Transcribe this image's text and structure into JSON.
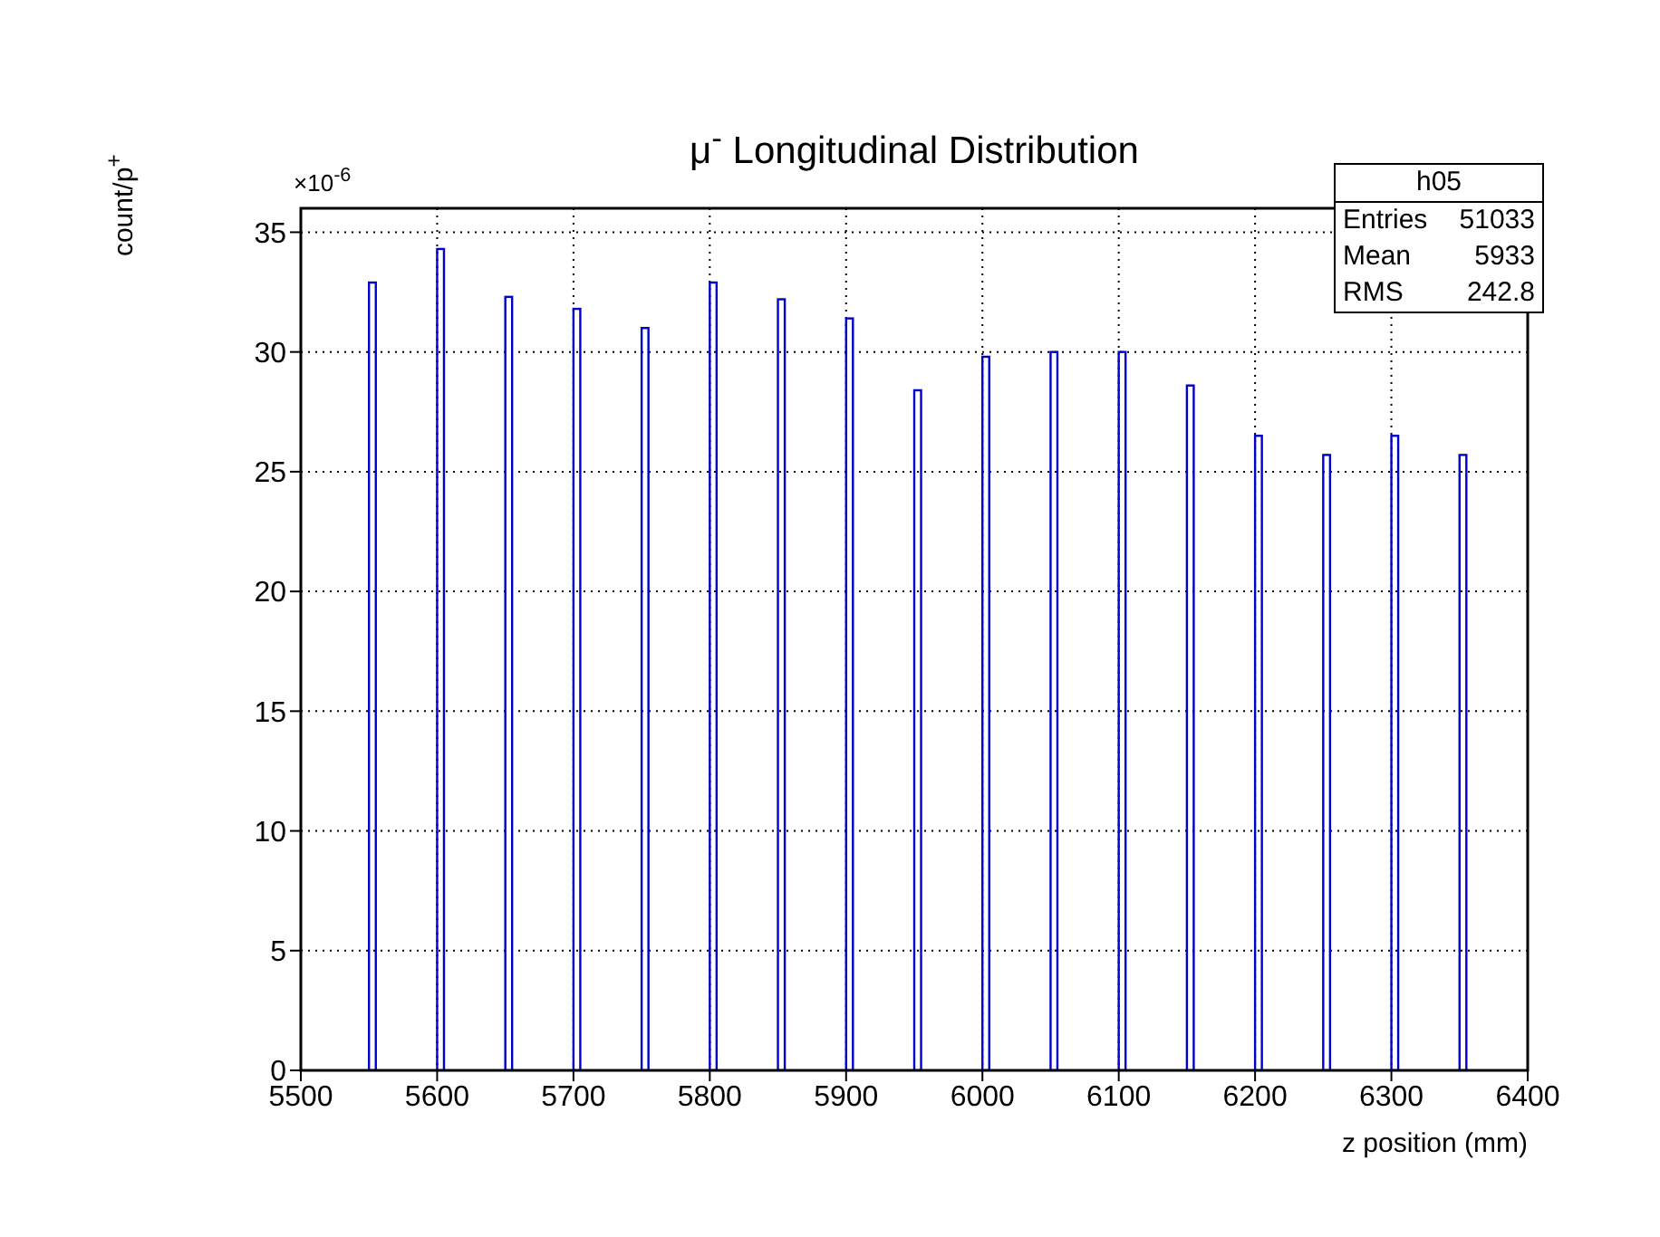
{
  "chart_data": {
    "type": "histogram",
    "title": "μ$^{-}$ Longitudinal Distribution",
    "xlabel": "z position (mm)",
    "ylabel": "count/p$^{+}$",
    "bins": [
      5550,
      5555,
      5600,
      5605,
      5650,
      5655,
      5700,
      5705,
      5750,
      5755,
      5800,
      5805,
      5850,
      5855,
      5900,
      5905,
      5950,
      5955,
      6000,
      6005,
      6050,
      6055,
      6100,
      6105,
      6150,
      6155,
      6200,
      6205,
      6250,
      6255,
      6300,
      6305,
      6350,
      6355
    ],
    "values": [
      32.9,
      0,
      34.3,
      0,
      32.3,
      0,
      31.8,
      0,
      31.0,
      0,
      32.9,
      0,
      32.2,
      0,
      31.4,
      0,
      28.4,
      0,
      29.8,
      0,
      30.0,
      0,
      30.0,
      0,
      28.6,
      0,
      26.5,
      0,
      25.7,
      0,
      26.5,
      0,
      25.7
    ],
    "color": "#0000cc",
    "xlim": [
      5500,
      6400
    ],
    "xticks": [
      5500,
      5600,
      5700,
      5800,
      5900,
      6000,
      6100,
      6200,
      6300,
      6400
    ],
    "ylim": [
      0,
      36
    ],
    "yticks": [
      0,
      5,
      10,
      15,
      20,
      25,
      30,
      35
    ],
    "grid": true,
    "annotations": [
      "×10$^{-6}$",
      "h05",
      "Entries",
      "51033",
      "Mean",
      "5933",
      "RMS",
      "242.8"
    ]
  }
}
